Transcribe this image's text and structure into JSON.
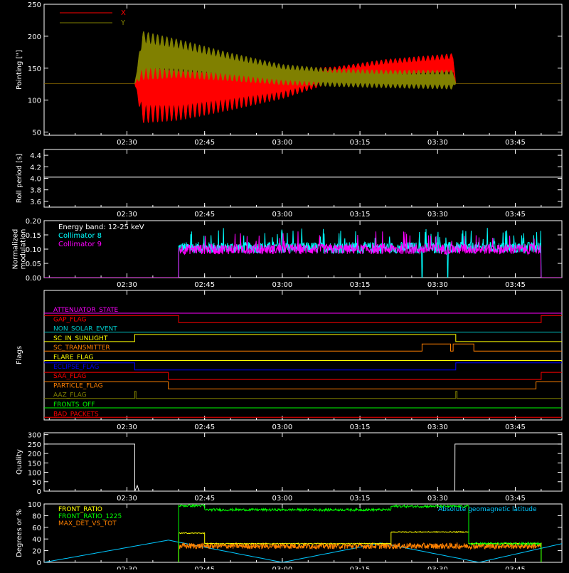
{
  "time_ticks": [
    "02:30",
    "02:45",
    "03:00",
    "03:15",
    "03:30",
    "03:45"
  ],
  "chart_data": [
    {
      "type": "line",
      "panel": "pointing",
      "ylabel": "Pointing [\"]",
      "ylim": [
        45,
        250
      ],
      "yticks": [
        "250",
        "200",
        "150",
        "100",
        "50"
      ],
      "x_range": [
        "02:14",
        "03:54"
      ],
      "legend": "top-left",
      "series": [
        {
          "name": "X",
          "color": "#ff0000",
          "x": [
            "02:14",
            "02:31:30",
            "02:33",
            "02:40",
            "02:50",
            "03:00",
            "03:10",
            "03:20",
            "03:33",
            "03:33:30",
            "03:54"
          ],
          "center": [
            126,
            126,
            122,
            118,
            122,
            126,
            140,
            148,
            155,
            126,
            126
          ],
          "amplitude": [
            0,
            0,
            58,
            50,
            38,
            24,
            12,
            16,
            18,
            0,
            0
          ]
        },
        {
          "name": "Y",
          "color": "#808000",
          "x": [
            "02:14",
            "02:31:30",
            "02:33",
            "02:40",
            "02:50",
            "03:00",
            "03:10",
            "03:20",
            "03:33",
            "03:33:30",
            "03:54"
          ],
          "center": [
            126,
            126,
            170,
            165,
            152,
            140,
            135,
            133,
            132,
            126,
            126
          ],
          "amplitude": [
            0,
            0,
            38,
            30,
            22,
            16,
            14,
            14,
            15,
            0,
            0
          ]
        }
      ]
    },
    {
      "type": "line",
      "panel": "roll",
      "ylabel": "Roll period [s]",
      "ylim": [
        3.5,
        4.5
      ],
      "yticks": [
        "4.4",
        "4.2",
        "4.0",
        "3.8",
        "3.6"
      ],
      "series": [
        {
          "name": "",
          "color": "#ffffff",
          "x": [
            "02:14",
            "03:54"
          ],
          "y": [
            4.02,
            4.02
          ]
        }
      ]
    },
    {
      "type": "line",
      "panel": "modulation",
      "ylabel": "Normalized modulation",
      "ylim": [
        0,
        0.2
      ],
      "yticks": [
        "0.20",
        "0.15",
        "0.10",
        "0.05",
        "0.00"
      ],
      "annotation": "Energy band: 12-25 keV",
      "active_interval": [
        "02:40",
        "03:50"
      ],
      "series": [
        {
          "name": "Collimator 8",
          "color": "#00ffff",
          "mean": 0.105,
          "spread": 0.02
        },
        {
          "name": "Collimator 9",
          "color": "#ff00ff",
          "mean": 0.1,
          "spread": 0.018
        }
      ]
    },
    {
      "type": "line",
      "panel": "flags",
      "ylabel": "Flags",
      "flags": [
        {
          "name": "ATTENUATOR_STATE",
          "color": "#ff00ff",
          "segments": [
            [
              "02:14",
              "03:54",
              0
            ]
          ]
        },
        {
          "name": "GAP_FLAG",
          "color": "#ff0000",
          "segments": [
            [
              "02:14",
              "02:40",
              1
            ],
            [
              "02:40",
              "03:50",
              0
            ],
            [
              "03:50",
              "03:54",
              1
            ]
          ]
        },
        {
          "name": "NON_SOLAR_EVENT",
          "color": "#00c8c8",
          "segments": [
            [
              "02:14",
              "03:54",
              0
            ]
          ]
        },
        {
          "name": "SC_IN_SUNLIGHT",
          "color": "#ffff00",
          "segments": [
            [
              "02:14",
              "02:31:30",
              0
            ],
            [
              "02:31:30",
              "03:33:30",
              1
            ],
            [
              "03:33:30",
              "03:54",
              0
            ]
          ]
        },
        {
          "name": "SC_TRANSMITTER",
          "color": "#ff8000",
          "segments": [
            [
              "02:14",
              "03:27",
              0
            ],
            [
              "03:27",
              "03:32:30",
              1
            ],
            [
              "03:32:30",
              "03:33",
              0
            ],
            [
              "03:33",
              "03:37",
              1
            ],
            [
              "03:37",
              "03:54",
              0
            ]
          ]
        },
        {
          "name": "FLARE_FLAG",
          "color": "#ffff00",
          "segments": [
            [
              "02:14",
              "03:54",
              0
            ]
          ]
        },
        {
          "name": "ECLIPSE_FLAG",
          "color": "#0000ff",
          "segments": [
            [
              "02:14",
              "02:31:30",
              1
            ],
            [
              "02:31:30",
              "03:33:30",
              0
            ],
            [
              "03:33:30",
              "03:54",
              1
            ]
          ]
        },
        {
          "name": "SAA_FLAG",
          "color": "#ff0000",
          "segments": [
            [
              "02:14",
              "02:38",
              1
            ],
            [
              "02:38",
              "03:50",
              0
            ],
            [
              "03:50",
              "03:54",
              1
            ]
          ]
        },
        {
          "name": "PARTICLE_FLAG",
          "color": "#ff8000",
          "segments": [
            [
              "02:14",
              "02:38",
              1
            ],
            [
              "02:38",
              "03:49",
              0
            ],
            [
              "03:49",
              "03:54",
              1
            ]
          ]
        },
        {
          "name": "AAZ_FLAG",
          "color": "#808000",
          "segments": [
            [
              "02:14",
              "02:31:30",
              0
            ],
            [
              "02:31:30",
              "02:31:45",
              1
            ],
            [
              "02:31:45",
              "03:33:30",
              0
            ],
            [
              "03:33:30",
              "03:33:45",
              1
            ],
            [
              "03:33:45",
              "03:54",
              0
            ]
          ]
        },
        {
          "name": "FRONTS_OFF",
          "color": "#00ff00",
          "segments": [
            [
              "02:14",
              "03:54",
              0
            ]
          ]
        },
        {
          "name": "BAD_PACKETS",
          "color": "#ff0000",
          "segments": [
            [
              "02:14",
              "03:54",
              0
            ]
          ]
        }
      ]
    },
    {
      "type": "line",
      "panel": "quality",
      "ylabel": "Quality",
      "ylim": [
        0,
        310
      ],
      "yticks": [
        "300",
        "250",
        "200",
        "150",
        "100",
        "50",
        "0"
      ],
      "series": [
        {
          "name": "",
          "color": "#ffffff",
          "x": [
            "02:14",
            "02:31:30",
            "02:31:31",
            "02:32",
            "02:32:20",
            "02:32:40",
            "03:33:20",
            "03:33:21",
            "03:54"
          ],
          "y": [
            250,
            250,
            0,
            30,
            0,
            0,
            0,
            250,
            250
          ]
        }
      ]
    },
    {
      "type": "line",
      "panel": "misc",
      "ylabel": "Degrees or %",
      "ylim": [
        0,
        100
      ],
      "yticks": [
        "100",
        "80",
        "60",
        "40",
        "20",
        "0"
      ],
      "series": [
        {
          "name": "FRONT_RATIO",
          "color": "#ffff00",
          "segments": [
            [
              "02:40",
              "02:45",
              50
            ],
            [
              "02:45",
              "03:21",
              32
            ],
            [
              "03:21",
              "03:36",
              52
            ],
            [
              "03:36",
              "03:50",
              32
            ]
          ]
        },
        {
          "name": "FRONT_RATIO_1225",
          "color": "#00ff00",
          "segments": [
            [
              "02:40",
              "02:45",
              97
            ],
            [
              "02:45",
              "03:21",
              90
            ],
            [
              "03:21",
              "03:36",
              96
            ],
            [
              "03:36",
              "03:50",
              32
            ]
          ]
        },
        {
          "name": "MAX_DET_VS_TOT",
          "color": "#ff8000",
          "mean": 28,
          "spread": 5
        },
        {
          "name": "Absolute geomagnetic latitude",
          "color": "#00c8ff",
          "x": [
            "02:14",
            "02:38",
            "03:00",
            "03:19",
            "03:38",
            "03:54"
          ],
          "y": [
            0,
            38,
            0,
            33,
            0,
            32
          ]
        }
      ]
    }
  ]
}
